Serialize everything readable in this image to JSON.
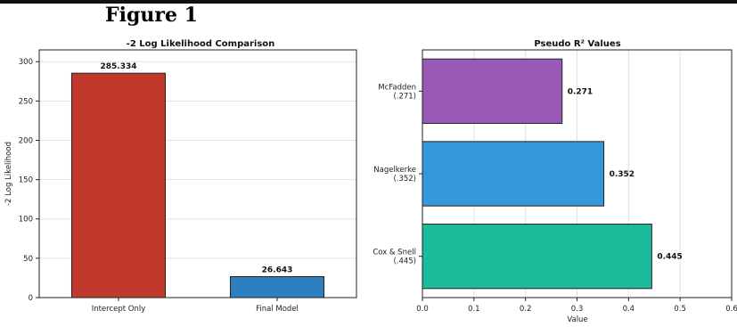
{
  "figure_title": "Figure 1",
  "chart_data": [
    {
      "type": "bar",
      "title": "-2 Log Likelihood Comparison",
      "xlabel": "",
      "ylabel": "-2 Log Likelihood",
      "categories": [
        "Intercept Only",
        "Final Model"
      ],
      "values": [
        285.334,
        26.643
      ],
      "value_labels": [
        "285.334",
        "26.643"
      ],
      "colors": [
        "#c0392b",
        "#2e7fbf"
      ],
      "ylim": [
        0,
        315
      ],
      "yticks": [
        "0",
        "50",
        "100",
        "150",
        "200",
        "250",
        "300"
      ],
      "grid": true
    },
    {
      "type": "bar",
      "orientation": "horizontal",
      "title": "Pseudo R² Values",
      "xlabel": "Value",
      "ylabel": "",
      "categories": [
        {
          "name": "McFadden",
          "sub": "(.271)"
        },
        {
          "name": "Nagelkerke",
          "sub": "(.352)"
        },
        {
          "name": "Cox & Snell",
          "sub": "(.445)"
        }
      ],
      "values": [
        0.271,
        0.352,
        0.445
      ],
      "value_labels": [
        "0.271",
        "0.352",
        "0.445"
      ],
      "colors": [
        "#9b59b6",
        "#3498db",
        "#1abc9c"
      ],
      "xlim": [
        0,
        0.6
      ],
      "xticks": [
        "0.0",
        "0.1",
        "0.2",
        "0.3",
        "0.4",
        "0.5",
        "0.6"
      ],
      "grid": true
    }
  ]
}
